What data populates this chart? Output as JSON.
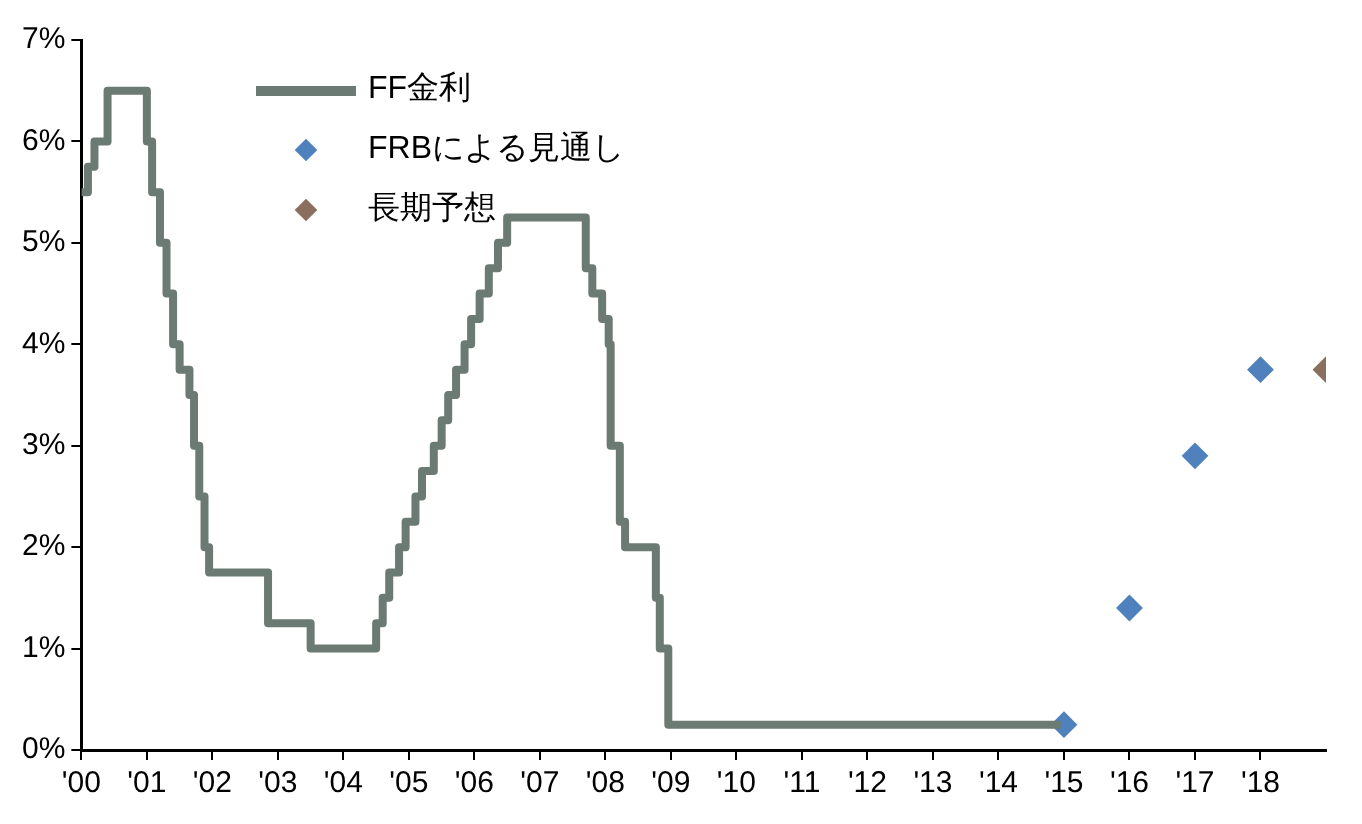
{
  "chart_data": {
    "type": "step",
    "xlim": [
      2000,
      2019
    ],
    "xticks": [
      {
        "value": 2000,
        "label": "'00"
      },
      {
        "value": 2001,
        "label": "'01"
      },
      {
        "value": 2002,
        "label": "'02"
      },
      {
        "value": 2003,
        "label": "'03"
      },
      {
        "value": 2004,
        "label": "'04"
      },
      {
        "value": 2005,
        "label": "'05"
      },
      {
        "value": 2006,
        "label": "'06"
      },
      {
        "value": 2007,
        "label": "'07"
      },
      {
        "value": 2008,
        "label": "'08"
      },
      {
        "value": 2009,
        "label": "'09"
      },
      {
        "value": 2010,
        "label": "'10"
      },
      {
        "value": 2011,
        "label": "'11"
      },
      {
        "value": 2012,
        "label": "'12"
      },
      {
        "value": 2013,
        "label": "'13"
      },
      {
        "value": 2014,
        "label": "'14"
      },
      {
        "value": 2015,
        "label": "'15"
      },
      {
        "value": 2016,
        "label": "'16"
      },
      {
        "value": 2017,
        "label": "'17"
      },
      {
        "value": 2018,
        "label": "'18"
      }
    ],
    "ylim": [
      0,
      7
    ],
    "yticks": [
      {
        "value": 0,
        "label": "0%"
      },
      {
        "value": 1,
        "label": "1%"
      },
      {
        "value": 2,
        "label": "2%"
      },
      {
        "value": 3,
        "label": "3%"
      },
      {
        "value": 4,
        "label": "4%"
      },
      {
        "value": 5,
        "label": "5%"
      },
      {
        "value": 6,
        "label": "6%"
      },
      {
        "value": 7,
        "label": "7%"
      }
    ],
    "grid": false,
    "legend": "top",
    "series": [
      {
        "name": "FF金利",
        "color": "#6b7a73",
        "marker": "none",
        "x": [
          2000,
          2000.1,
          2000.2,
          2000.4,
          2001.0,
          2001.08,
          2001.2,
          2001.3,
          2001.4,
          2001.5,
          2001.65,
          2001.72,
          2001.8,
          2001.88,
          2001.95,
          2002.85,
          2003.5,
          2004.5,
          2004.6,
          2004.7,
          2004.85,
          2004.95,
          2005.1,
          2005.2,
          2005.38,
          2005.5,
          2005.6,
          2005.72,
          2005.85,
          2005.95,
          2006.08,
          2006.22,
          2006.36,
          2006.5,
          2007.7,
          2007.8,
          2007.95,
          2008.05,
          2008.08,
          2008.22,
          2008.3,
          2008.77,
          2008.83,
          2008.96,
          2014.95
        ],
        "values": [
          5.5,
          5.75,
          6.0,
          6.5,
          6.0,
          5.5,
          5.0,
          4.5,
          4.0,
          3.75,
          3.5,
          3.0,
          2.5,
          2.0,
          1.75,
          1.25,
          1.0,
          1.25,
          1.5,
          1.75,
          2.0,
          2.25,
          2.5,
          2.75,
          3.0,
          3.25,
          3.5,
          3.75,
          4.0,
          4.25,
          4.5,
          4.75,
          5.0,
          5.25,
          4.75,
          4.5,
          4.25,
          4.0,
          3.0,
          2.25,
          2.0,
          1.5,
          1.0,
          0.25,
          0.25
        ]
      },
      {
        "name": "FRBによる見通し",
        "type": "scatter",
        "color": "#4f81bd",
        "marker": "diamond",
        "x": [
          2015,
          2016,
          2017,
          2018
        ],
        "values": [
          0.25,
          1.4,
          2.9,
          3.75
        ]
      },
      {
        "name": "長期予想",
        "type": "scatter",
        "color": "#8b6f5e",
        "marker": "diamond",
        "x": [
          2019
        ],
        "values": [
          3.75
        ]
      }
    ]
  }
}
